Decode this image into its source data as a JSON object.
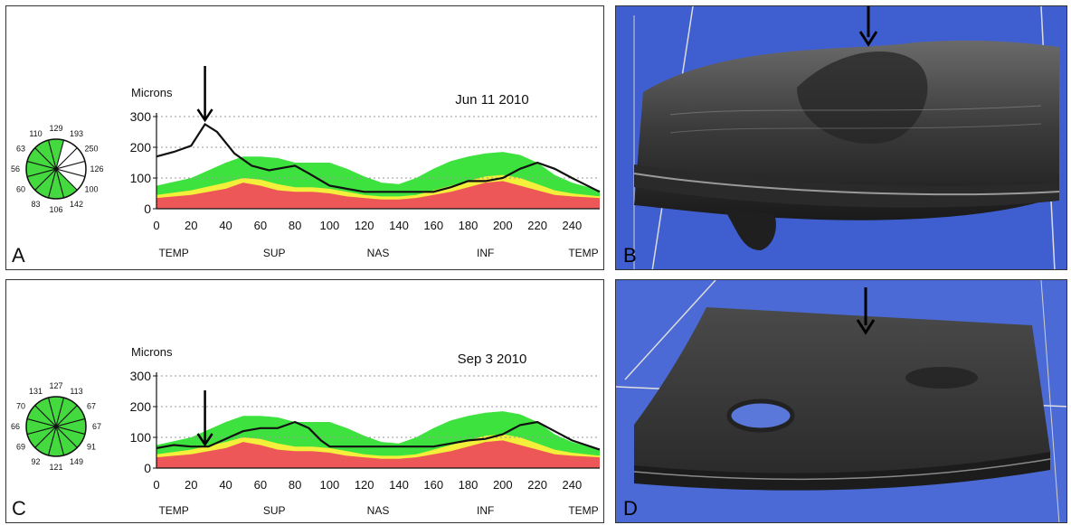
{
  "colors": {
    "green_band": "#3ee23e",
    "yellow_band": "#f4ef3a",
    "red_band": "#ee5757",
    "measured_line": "#111111",
    "sector_green": "#44d93e",
    "sector_white": "#ffffff",
    "scan_background": "#4466d8"
  },
  "panels": [
    {
      "letter": "A",
      "type": "chart"
    },
    {
      "letter": "B",
      "type": "image",
      "icon": "oct-3d-volume-scan-image",
      "arrow": "down-arrow-icon"
    },
    {
      "letter": "C",
      "type": "chart"
    },
    {
      "letter": "D",
      "type": "image",
      "icon": "oct-3d-volume-scan-image",
      "arrow": "down-arrow-icon"
    }
  ],
  "chart_data": [
    {
      "type": "area",
      "panel": "A",
      "date": "Jun 11 2010",
      "ylabel": "Microns",
      "xlabel": "",
      "xlim": [
        0,
        256
      ],
      "ylim": [
        0,
        300
      ],
      "x_ticks": [
        0,
        20,
        40,
        60,
        80,
        100,
        120,
        140,
        160,
        180,
        200,
        220,
        240
      ],
      "y_ticks": [
        0,
        100,
        200,
        300
      ],
      "region_labels": [
        "TEMP",
        "SUP",
        "NAS",
        "INF",
        "TEMP"
      ],
      "grid": true,
      "normal_band_x": [
        0,
        20,
        40,
        50,
        60,
        70,
        80,
        90,
        100,
        110,
        120,
        130,
        140,
        150,
        160,
        170,
        180,
        190,
        200,
        210,
        220,
        230,
        240,
        256
      ],
      "upper_normal": [
        75,
        100,
        150,
        170,
        170,
        165,
        150,
        150,
        150,
        130,
        105,
        85,
        80,
        100,
        130,
        155,
        170,
        180,
        185,
        175,
        150,
        110,
        85,
        60
      ],
      "yellow_upper": [
        45,
        60,
        85,
        100,
        95,
        80,
        70,
        70,
        65,
        55,
        45,
        40,
        40,
        45,
        60,
        75,
        90,
        105,
        110,
        100,
        80,
        60,
        50,
        40
      ],
      "red_upper": [
        35,
        45,
        65,
        85,
        75,
        60,
        55,
        55,
        50,
        40,
        35,
        30,
        30,
        35,
        45,
        55,
        70,
        85,
        90,
        75,
        60,
        45,
        40,
        35
      ],
      "series": [
        {
          "x": [
            0,
            10,
            20,
            28,
            35,
            45,
            55,
            65,
            75,
            80,
            88,
            100,
            120,
            140,
            160,
            170,
            180,
            190,
            200,
            210,
            220,
            230,
            240,
            256
          ],
          "values": [
            170,
            185,
            205,
            275,
            250,
            180,
            140,
            125,
            135,
            140,
            115,
            75,
            55,
            55,
            55,
            70,
            90,
            90,
            100,
            130,
            150,
            130,
            100,
            55
          ]
        }
      ],
      "annotations": [
        {
          "type": "arrow",
          "x": 28,
          "points": "down"
        }
      ],
      "sector_values": [
        "129",
        "193",
        "250",
        "126",
        "100",
        "142",
        "106",
        "83",
        "60",
        "56",
        "63",
        "110"
      ],
      "sector_abnormal": [
        false,
        true,
        true,
        true,
        true,
        false,
        false,
        false,
        false,
        false,
        false,
        false
      ]
    },
    {
      "type": "area",
      "panel": "C",
      "date": "Sep 3 2010",
      "ylabel": "Microns",
      "xlabel": "",
      "xlim": [
        0,
        256
      ],
      "ylim": [
        0,
        300
      ],
      "x_ticks": [
        0,
        20,
        40,
        60,
        80,
        100,
        120,
        140,
        160,
        180,
        200,
        220,
        240
      ],
      "y_ticks": [
        0,
        100,
        200,
        300
      ],
      "region_labels": [
        "TEMP",
        "SUP",
        "NAS",
        "INF",
        "TEMP"
      ],
      "grid": true,
      "normal_band_x": [
        0,
        20,
        40,
        50,
        60,
        70,
        80,
        90,
        100,
        110,
        120,
        130,
        140,
        150,
        160,
        170,
        180,
        190,
        200,
        210,
        220,
        230,
        240,
        256
      ],
      "upper_normal": [
        75,
        100,
        150,
        170,
        170,
        165,
        150,
        150,
        150,
        130,
        105,
        85,
        80,
        100,
        130,
        155,
        170,
        180,
        185,
        175,
        150,
        110,
        85,
        60
      ],
      "yellow_upper": [
        45,
        60,
        85,
        100,
        95,
        80,
        70,
        70,
        65,
        55,
        45,
        40,
        40,
        45,
        60,
        75,
        90,
        105,
        110,
        100,
        80,
        60,
        50,
        40
      ],
      "red_upper": [
        35,
        45,
        65,
        85,
        75,
        60,
        55,
        55,
        50,
        40,
        35,
        30,
        30,
        35,
        45,
        55,
        70,
        85,
        90,
        75,
        60,
        45,
        40,
        35
      ],
      "series": [
        {
          "x": [
            0,
            10,
            20,
            30,
            40,
            50,
            60,
            70,
            80,
            88,
            95,
            100,
            120,
            140,
            160,
            170,
            180,
            190,
            200,
            210,
            220,
            230,
            240,
            256
          ],
          "values": [
            65,
            75,
            70,
            70,
            95,
            120,
            130,
            130,
            150,
            130,
            90,
            70,
            70,
            70,
            70,
            80,
            90,
            95,
            110,
            140,
            150,
            120,
            90,
            60
          ]
        }
      ],
      "annotations": [
        {
          "type": "arrow",
          "x": 28,
          "points": "down"
        }
      ],
      "sector_values": [
        "127",
        "113",
        "67",
        "67",
        "91",
        "149",
        "121",
        "92",
        "69",
        "66",
        "70",
        "131"
      ],
      "sector_abnormal": [
        false,
        false,
        false,
        false,
        false,
        false,
        false,
        false,
        false,
        false,
        false,
        false
      ]
    }
  ]
}
